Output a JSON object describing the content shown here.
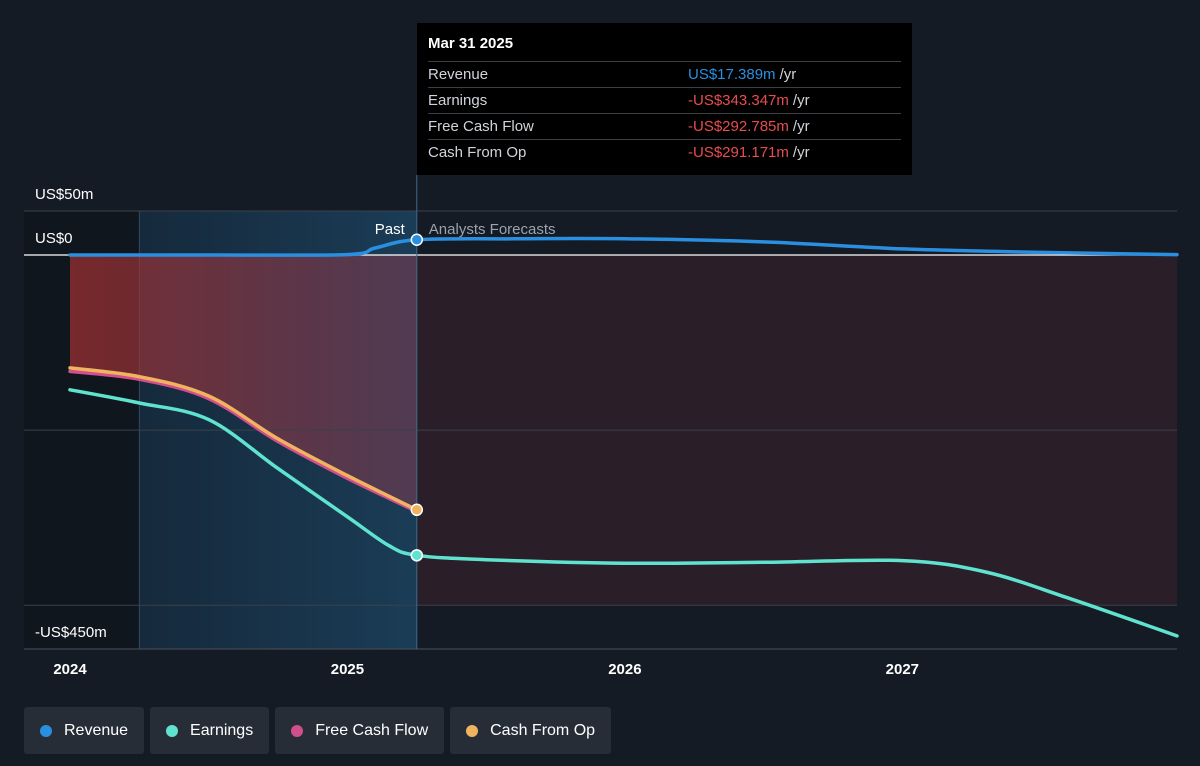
{
  "colors": {
    "revenue": "#2a8fe0",
    "earnings": "#5fe3cf",
    "free_cash_flow": "#d14f8c",
    "cash_from_op": "#f0b35f"
  },
  "tooltip": {
    "date": "Mar 31 2025",
    "rows": [
      {
        "name": "Revenue",
        "value": "US$17.389m",
        "unit": "/yr",
        "color": "#2a8fe0"
      },
      {
        "name": "Earnings",
        "value": "-US$343.347m",
        "unit": "/yr",
        "color": "#e84d4d"
      },
      {
        "name": "Free Cash Flow",
        "value": "-US$292.785m",
        "unit": "/yr",
        "color": "#e84d4d"
      },
      {
        "name": "Cash From Op",
        "value": "-US$291.171m",
        "unit": "/yr",
        "color": "#e84d4d"
      }
    ]
  },
  "labels": {
    "past": "Past",
    "forecast": "Analysts Forecasts"
  },
  "legend": [
    {
      "label": "Revenue",
      "color": "#2a8fe0"
    },
    {
      "label": "Earnings",
      "color": "#5fe3cf"
    },
    {
      "label": "Free Cash Flow",
      "color": "#d14f8c"
    },
    {
      "label": "Cash From Op",
      "color": "#f0b35f"
    }
  ],
  "chart_data": {
    "type": "line",
    "y_tick_labels": [
      "US$50m",
      "US$0",
      "-US$450m"
    ],
    "y_tick_values": [
      50,
      0,
      -450
    ],
    "ylim": [
      -450,
      50
    ],
    "xlim": [
      2024.0,
      2027.99
    ],
    "x_tick_labels": [
      "2024",
      "2025",
      "2026",
      "2027"
    ],
    "x_tick_values": [
      2024,
      2025,
      2026,
      2027
    ],
    "past_end": 2025.25,
    "highlight_start": 2024.25,
    "series": [
      {
        "name": "Revenue",
        "color": "#2a8fe0",
        "x": [
          2024.0,
          2024.5,
          2025.0,
          2025.1,
          2025.25,
          2025.6,
          2026.0,
          2026.5,
          2027.0,
          2027.5,
          2027.99
        ],
        "y": [
          0,
          0,
          0.5,
          8,
          17.4,
          18.5,
          18.5,
          15,
          7,
          3,
          0.5
        ]
      },
      {
        "name": "Earnings",
        "color": "#5fe3cf",
        "x": [
          2024.0,
          2024.25,
          2024.5,
          2024.75,
          2025.0,
          2025.15,
          2025.25,
          2025.5,
          2026.0,
          2026.5,
          2027.0,
          2027.3,
          2027.6,
          2027.99
        ],
        "y": [
          -154,
          -169,
          -188,
          -244,
          -299,
          -332,
          -343,
          -348,
          -352,
          -351,
          -349,
          -362,
          -392,
          -435
        ]
      },
      {
        "name": "Free Cash Flow",
        "color": "#d14f8c",
        "x": [
          2024.0,
          2024.25,
          2024.5,
          2024.75,
          2025.0,
          2025.25
        ],
        "y": [
          -133,
          -142,
          -164,
          -213,
          -255,
          -293
        ]
      },
      {
        "name": "Cash From Op",
        "color": "#f0b35f",
        "x": [
          2024.0,
          2024.25,
          2024.5,
          2024.75,
          2025.0,
          2025.25
        ],
        "y": [
          -129,
          -139,
          -161,
          -210,
          -252,
          -291
        ]
      }
    ],
    "marked_points": [
      {
        "series": "Revenue",
        "x": 2025.25,
        "y": 17.4
      },
      {
        "series": "Earnings",
        "x": 2025.25,
        "y": -343
      },
      {
        "series": "Cash From Op",
        "x": 2025.25,
        "y": -291
      }
    ],
    "grid": true,
    "legend_position": "bottom"
  }
}
